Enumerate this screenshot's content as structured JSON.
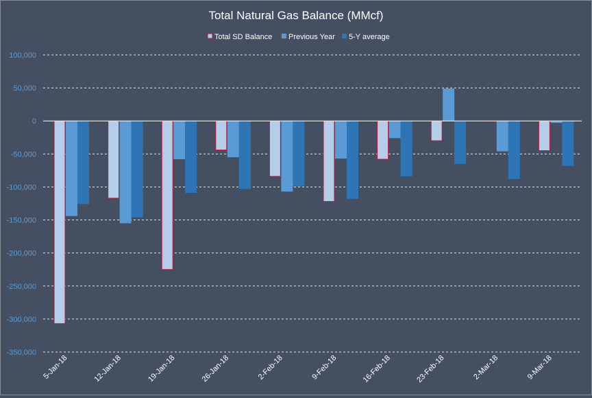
{
  "chart_data": {
    "type": "bar",
    "title": "Total Natural Gas Balance (MMcf)",
    "xlabel": "",
    "ylabel": "",
    "categories": [
      "5-Jan-18",
      "12-Jan-18",
      "19-Jan-18",
      "26-Jan-18",
      "2-Feb-18",
      "9-Feb-18",
      "16-Feb-18",
      "23-Feb-18",
      "2-Mar-18",
      "9-Mar-18"
    ],
    "series": [
      {
        "name": "Total SD Balance",
        "color": "#b4cde8",
        "border": "#c0143c",
        "values": [
          -307000,
          -117000,
          -225000,
          -44000,
          -84000,
          -122000,
          -58000,
          -30000,
          -1000,
          -45000
        ]
      },
      {
        "name": "Previous Year",
        "color": "#5b9bd5",
        "values": [
          -144000,
          -155000,
          -58000,
          -55000,
          -107000,
          -57000,
          -26000,
          49000,
          -46000,
          -3000
        ]
      },
      {
        "name": "5-Y average",
        "color": "#2e75b6",
        "values": [
          -126000,
          -146000,
          -109000,
          -103000,
          -99000,
          -118000,
          -84000,
          -65000,
          -88000,
          -68000
        ]
      }
    ],
    "yticks": [
      "100,000",
      "50,000",
      "0",
      "-50,000",
      "-100,000",
      "-150,000",
      "-200,000",
      "-250,000",
      "-300,000",
      "-350,000"
    ],
    "ylim": [
      -350000,
      100000
    ],
    "grid": true,
    "legend_position": "top-center",
    "background": "#444f62"
  }
}
